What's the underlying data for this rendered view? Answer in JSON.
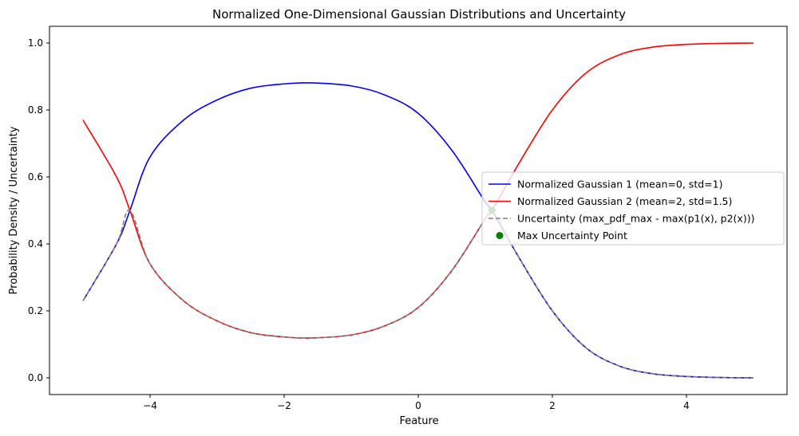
{
  "chart_data": {
    "type": "line",
    "title": "Normalized One-Dimensional Gaussian Distributions and Uncertainty",
    "xlabel": "Feature",
    "ylabel": "Probability Density / Uncertainty",
    "xlim": [
      -5.5,
      5.5
    ],
    "ylim": [
      -0.05,
      1.05
    ],
    "xticks": [
      -4,
      -2,
      0,
      2,
      4
    ],
    "xtick_labels": [
      "−4",
      "−2",
      "0",
      "2",
      "4"
    ],
    "yticks": [
      0.0,
      0.2,
      0.4,
      0.6,
      0.8,
      1.0
    ],
    "ytick_labels": [
      "0.0",
      "0.2",
      "0.4",
      "0.6",
      "0.8",
      "1.0"
    ],
    "grid": false,
    "legend_position": "center-right",
    "series": [
      {
        "name": "Normalized Gaussian 1 (mean=0, std=1)",
        "color": "#0000ff",
        "style": "solid",
        "x": [
          -5.0,
          -4.5,
          -4.3,
          -4.0,
          -3.5,
          -3.0,
          -2.5,
          -2.0,
          -1.6,
          -1.0,
          -0.5,
          0.0,
          0.5,
          1.0,
          1.1,
          1.5,
          2.0,
          2.5,
          3.0,
          3.5,
          4.0,
          4.5,
          5.0
        ],
        "y": [
          0.23,
          0.4,
          0.5,
          0.66,
          0.77,
          0.83,
          0.865,
          0.878,
          0.881,
          0.872,
          0.845,
          0.79,
          0.68,
          0.525,
          0.5,
          0.36,
          0.2,
          0.09,
          0.035,
          0.012,
          0.004,
          0.001,
          0.0
        ]
      },
      {
        "name": "Normalized Gaussian 2 (mean=2, std=1.5)",
        "color": "#ff0000",
        "style": "solid",
        "x": [
          -5.0,
          -4.5,
          -4.3,
          -4.0,
          -3.5,
          -3.0,
          -2.5,
          -2.0,
          -1.6,
          -1.0,
          -0.5,
          0.0,
          0.5,
          1.0,
          1.1,
          1.5,
          2.0,
          2.5,
          3.0,
          3.5,
          4.0,
          4.5,
          5.0
        ],
        "y": [
          0.77,
          0.6,
          0.5,
          0.34,
          0.23,
          0.17,
          0.135,
          0.122,
          0.119,
          0.128,
          0.155,
          0.21,
          0.32,
          0.475,
          0.5,
          0.64,
          0.8,
          0.91,
          0.965,
          0.988,
          0.996,
          0.999,
          1.0
        ]
      },
      {
        "name": "Uncertainty (max_pdf_max - max(p1(x), p2(x)))",
        "color": "#808080",
        "style": "dashed",
        "x": [
          -5.0,
          -4.5,
          -4.3,
          -4.0,
          -3.5,
          -3.0,
          -2.5,
          -2.0,
          -1.6,
          -1.0,
          -0.5,
          0.0,
          0.5,
          1.0,
          1.1,
          1.5,
          2.0,
          2.5,
          3.0,
          3.5,
          4.0,
          4.5,
          5.0
        ],
        "y": [
          0.23,
          0.4,
          0.5,
          0.34,
          0.23,
          0.17,
          0.135,
          0.122,
          0.119,
          0.128,
          0.155,
          0.21,
          0.32,
          0.475,
          0.5,
          0.36,
          0.2,
          0.09,
          0.035,
          0.012,
          0.004,
          0.001,
          0.0
        ]
      }
    ],
    "points": [
      {
        "name": "Max Uncertainty Point",
        "color": "#008000",
        "x": 1.1,
        "y": 0.5
      }
    ]
  }
}
